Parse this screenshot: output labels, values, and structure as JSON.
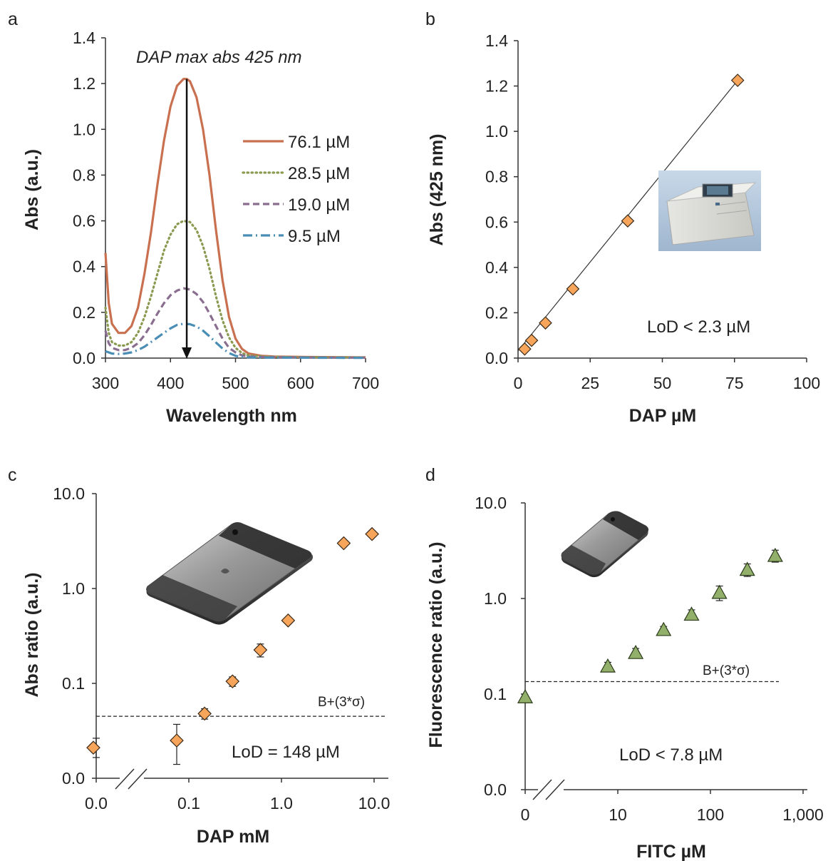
{
  "colors": {
    "orange_line": "#c8704f",
    "green_dot": "#8a9a50",
    "purple_dash": "#8a6e8f",
    "blue_dashdot": "#4a8db5",
    "diamond_fill": "#f6a55a",
    "triangle_fill": "#93b06a"
  },
  "chart_data": [
    {
      "panel": "a",
      "type": "line",
      "xlabel": "Wavelength nm",
      "ylabel": "Abs (a.u.)",
      "xlim": [
        300,
        700
      ],
      "ylim": [
        0,
        1.4
      ],
      "xticks": [
        "300",
        "400",
        "500",
        "600",
        "700"
      ],
      "yticks": [
        "0.0",
        "0.2",
        "0.4",
        "0.6",
        "0.8",
        "1.0",
        "1.2",
        "1.4"
      ],
      "annotation": "DAP max abs 425 nm",
      "peak_arrow": {
        "x": 425,
        "y_top": 1.22,
        "y_bottom": 0.0
      },
      "legend_position": "right",
      "series": [
        {
          "name": "76.1 µM",
          "style": "solid",
          "peak": 1.22,
          "base": 0.005,
          "points": [
            [
              300,
              0.46
            ],
            [
              305,
              0.24
            ],
            [
              310,
              0.15
            ],
            [
              320,
              0.11
            ],
            [
              330,
              0.11
            ],
            [
              340,
              0.14
            ],
            [
              350,
              0.22
            ],
            [
              360,
              0.37
            ],
            [
              370,
              0.55
            ],
            [
              380,
              0.76
            ],
            [
              390,
              0.95
            ],
            [
              400,
              1.1
            ],
            [
              410,
              1.19
            ],
            [
              420,
              1.22
            ],
            [
              425,
              1.22
            ],
            [
              430,
              1.21
            ],
            [
              440,
              1.14
            ],
            [
              450,
              1.0
            ],
            [
              460,
              0.8
            ],
            [
              470,
              0.56
            ],
            [
              480,
              0.34
            ],
            [
              490,
              0.18
            ],
            [
              500,
              0.085
            ],
            [
              510,
              0.04
            ],
            [
              520,
              0.02
            ],
            [
              540,
              0.01
            ],
            [
              560,
              0.007
            ],
            [
              600,
              0.005
            ],
            [
              650,
              0.004
            ],
            [
              700,
              0.003
            ]
          ]
        },
        {
          "name": "28.5 µM",
          "style": "dotted",
          "points": [
            [
              300,
              0.22
            ],
            [
              305,
              0.11
            ],
            [
              310,
              0.07
            ],
            [
              320,
              0.055
            ],
            [
              330,
              0.055
            ],
            [
              340,
              0.07
            ],
            [
              350,
              0.11
            ],
            [
              360,
              0.18
            ],
            [
              370,
              0.27
            ],
            [
              380,
              0.37
            ],
            [
              390,
              0.47
            ],
            [
              400,
              0.54
            ],
            [
              410,
              0.585
            ],
            [
              420,
              0.6
            ],
            [
              430,
              0.595
            ],
            [
              440,
              0.56
            ],
            [
              450,
              0.49
            ],
            [
              460,
              0.39
            ],
            [
              470,
              0.27
            ],
            [
              480,
              0.165
            ],
            [
              490,
              0.09
            ],
            [
              500,
              0.045
            ],
            [
              510,
              0.022
            ],
            [
              520,
              0.012
            ],
            [
              550,
              0.006
            ],
            [
              600,
              0.004
            ],
            [
              700,
              0.003
            ]
          ]
        },
        {
          "name": "19.0 µM",
          "style": "dashed",
          "points": [
            [
              300,
              0.12
            ],
            [
              305,
              0.065
            ],
            [
              310,
              0.045
            ],
            [
              320,
              0.035
            ],
            [
              330,
              0.035
            ],
            [
              340,
              0.045
            ],
            [
              350,
              0.065
            ],
            [
              360,
              0.1
            ],
            [
              370,
              0.145
            ],
            [
              380,
              0.195
            ],
            [
              390,
              0.24
            ],
            [
              400,
              0.275
            ],
            [
              410,
              0.295
            ],
            [
              420,
              0.305
            ],
            [
              430,
              0.3
            ],
            [
              440,
              0.28
            ],
            [
              450,
              0.245
            ],
            [
              460,
              0.195
            ],
            [
              470,
              0.14
            ],
            [
              480,
              0.085
            ],
            [
              490,
              0.045
            ],
            [
              500,
              0.025
            ],
            [
              510,
              0.012
            ],
            [
              520,
              0.007
            ],
            [
              550,
              0.004
            ],
            [
              600,
              0.003
            ],
            [
              700,
              0.002
            ]
          ]
        },
        {
          "name": "9.5 µM",
          "style": "dashdot",
          "points": [
            [
              300,
              0.03
            ],
            [
              305,
              0.025
            ],
            [
              310,
              0.02
            ],
            [
              320,
              0.018
            ],
            [
              330,
              0.02
            ],
            [
              340,
              0.025
            ],
            [
              350,
              0.035
            ],
            [
              360,
              0.05
            ],
            [
              370,
              0.07
            ],
            [
              380,
              0.09
            ],
            [
              390,
              0.11
            ],
            [
              400,
              0.13
            ],
            [
              410,
              0.145
            ],
            [
              420,
              0.15
            ],
            [
              430,
              0.148
            ],
            [
              440,
              0.138
            ],
            [
              450,
              0.12
            ],
            [
              460,
              0.095
            ],
            [
              470,
              0.068
            ],
            [
              480,
              0.042
            ],
            [
              490,
              0.022
            ],
            [
              500,
              0.01
            ],
            [
              510,
              0.005
            ],
            [
              520,
              0.003
            ],
            [
              560,
              0.002
            ],
            [
              600,
              0.002
            ],
            [
              700,
              0.001
            ]
          ]
        }
      ]
    },
    {
      "panel": "b",
      "type": "scatter",
      "xlabel": "DAP µM",
      "ylabel": "Abs (425 nm)",
      "xlim": [
        0,
        100
      ],
      "ylim": [
        0,
        1.4
      ],
      "xticks": [
        "0",
        "25",
        "50",
        "75",
        "100"
      ],
      "yticks": [
        "0.0",
        "0.2",
        "0.4",
        "0.6",
        "0.8",
        "1.0",
        "1.2",
        "1.4"
      ],
      "annotation": "LoD < 2.3 µM",
      "points": [
        [
          2.3,
          0.04
        ],
        [
          4.7,
          0.078
        ],
        [
          9.5,
          0.155
        ],
        [
          19.0,
          0.305
        ],
        [
          38.0,
          0.605
        ],
        [
          76.1,
          1.225
        ]
      ],
      "fit": {
        "x0": 0,
        "y0": 0.032,
        "x1": 76.1,
        "y1": 1.225
      },
      "image": "spectrophotometer-photo"
    },
    {
      "panel": "c",
      "type": "scatter",
      "xlabel": "DAP mM",
      "ylabel": "Abs ratio (a.u.)",
      "xscale": "log",
      "yscale": "log",
      "xticks": [
        "0.0",
        "0.1",
        "1.0",
        "10.0"
      ],
      "yticks": [
        "0.0",
        "0.1",
        "1.0",
        "10.0"
      ],
      "annotation": "LoD = 148 µM",
      "threshold_label": "B+(3*σ)",
      "threshold": 0.045,
      "zero_point": {
        "x": 0.0,
        "y": 0.021,
        "err": 0.002
      },
      "points": [
        {
          "x": 0.074,
          "y": 0.025,
          "err_up": 0.012,
          "err_down": 0.011
        },
        {
          "x": 0.148,
          "y": 0.048,
          "err": 0.006
        },
        {
          "x": 0.296,
          "y": 0.105,
          "err": 0.012
        },
        {
          "x": 0.592,
          "y": 0.225,
          "err": 0.035
        },
        {
          "x": 1.18,
          "y": 0.46,
          "err": 0.02
        },
        {
          "x": 4.7,
          "y": 3.0,
          "err": 0.15
        },
        {
          "x": 9.5,
          "y": 3.75,
          "err": 0.15
        }
      ],
      "image": "smartphone-photo"
    },
    {
      "panel": "d",
      "type": "scatter",
      "xlabel": "FITC µM",
      "ylabel": "Fluorescence ratio (a.u.)",
      "xscale": "log",
      "yscale": "log",
      "xticks": [
        "0",
        "10",
        "100",
        "1,000"
      ],
      "yticks": [
        "0.0",
        "0.1",
        "1.0",
        "10.0"
      ],
      "annotation": "LoD < 7.8 µM",
      "threshold_label": "B+(3*σ)",
      "threshold": 0.135,
      "zero_point": {
        "x": 0,
        "y": 0.093,
        "err": 0.004
      },
      "points": [
        {
          "x": 7.8,
          "y": 0.195,
          "err": 0.02
        },
        {
          "x": 15.6,
          "y": 0.27,
          "err": 0.03
        },
        {
          "x": 31.2,
          "y": 0.47,
          "err": 0.04
        },
        {
          "x": 62.5,
          "y": 0.68,
          "err": 0.08
        },
        {
          "x": 125,
          "y": 1.15,
          "err": 0.2
        },
        {
          "x": 250,
          "y": 2.0,
          "err": 0.3
        },
        {
          "x": 500,
          "y": 2.8,
          "err": 0.4
        }
      ],
      "image": "smartphone-photo"
    }
  ]
}
